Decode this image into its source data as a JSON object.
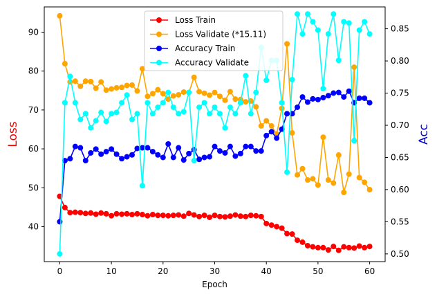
{
  "chart_data": {
    "type": "line",
    "xlabel": "Epoch",
    "ylabel_left": "Loss",
    "ylabel_right": "Acc",
    "ylabel_left_color": "#ff0000",
    "ylabel_right_color": "#0000cc",
    "xlim": [
      -3,
      63
    ],
    "ylim_left": [
      31.0,
      96.5
    ],
    "ylim_right": [
      0.488,
      0.884
    ],
    "xticks": [
      0,
      10,
      20,
      30,
      40,
      50,
      60
    ],
    "yticks_left": [
      40,
      50,
      60,
      70,
      80,
      90
    ],
    "yticks_right": [
      0.5,
      0.55,
      0.6,
      0.65,
      0.7,
      0.75,
      0.8,
      0.85
    ],
    "ytick_labels_right": [
      "0.50",
      "0.55",
      "0.60",
      "0.65",
      "0.70",
      "0.75",
      "0.80",
      "0.85"
    ],
    "grid": false,
    "legend_position": "upper-center",
    "x": [
      0,
      1,
      2,
      3,
      4,
      5,
      6,
      7,
      8,
      9,
      10,
      11,
      12,
      13,
      14,
      15,
      16,
      17,
      18,
      19,
      20,
      21,
      22,
      23,
      24,
      25,
      26,
      27,
      28,
      29,
      30,
      31,
      32,
      33,
      34,
      35,
      36,
      37,
      38,
      39,
      40,
      41,
      42,
      43,
      44,
      45,
      46,
      47,
      48,
      49,
      50,
      51,
      52,
      53,
      54,
      55,
      56,
      57,
      58,
      59,
      60
    ],
    "series": [
      {
        "name": "Loss Train",
        "color": "#ff0000",
        "axis": "left",
        "values": [
          47.8,
          44.9,
          43.6,
          43.7,
          43.6,
          43.4,
          43.5,
          43.2,
          43.5,
          43.3,
          42.8,
          43.3,
          43.2,
          43.3,
          43.1,
          43.3,
          43.1,
          42.8,
          43.1,
          42.9,
          42.9,
          42.8,
          42.9,
          43.0,
          42.7,
          43.4,
          43.0,
          42.6,
          42.9,
          42.4,
          42.9,
          42.6,
          42.5,
          42.7,
          43.0,
          42.7,
          42.6,
          42.9,
          42.8,
          42.6,
          40.8,
          40.4,
          40.0,
          39.6,
          38.2,
          38.1,
          36.5,
          36.0,
          35.1,
          34.8,
          34.6,
          34.6,
          34.0,
          34.9,
          33.9,
          34.8,
          34.6,
          34.5,
          35.0,
          34.6,
          34.9
        ]
      },
      {
        "name": "Loss Validate (*15.11)",
        "color": "#ffa500",
        "axis": "left",
        "values": [
          94.2,
          81.9,
          77.2,
          77.4,
          76.1,
          77.4,
          77.3,
          75.6,
          77.2,
          75.1,
          75.4,
          75.7,
          75.8,
          76.3,
          76.4,
          74.9,
          80.6,
          73.5,
          74.2,
          75.2,
          74.2,
          72.8,
          73.6,
          73.9,
          74.6,
          74.5,
          78.4,
          74.7,
          74.3,
          73.8,
          74.5,
          73.5,
          72.5,
          74.7,
          72.8,
          72.7,
          72.1,
          72.3,
          70.8,
          65.9,
          67.2,
          65.9,
          63.8,
          70.4,
          87.0,
          64.1,
          53.3,
          54.9,
          52.0,
          52.3,
          50.7,
          63.0,
          52.0,
          51.2,
          58.4,
          48.8,
          53.5,
          81.0,
          52.6,
          51.4,
          49.5
        ]
      },
      {
        "name": "Accuracy Train",
        "color": "#0000ff",
        "axis": "right",
        "values": [
          0.55,
          0.645,
          0.648,
          0.667,
          0.665,
          0.645,
          0.657,
          0.663,
          0.655,
          0.659,
          0.663,
          0.655,
          0.648,
          0.651,
          0.654,
          0.664,
          0.665,
          0.665,
          0.659,
          0.654,
          0.65,
          0.671,
          0.65,
          0.665,
          0.646,
          0.656,
          0.662,
          0.647,
          0.65,
          0.651,
          0.667,
          0.66,
          0.657,
          0.667,
          0.652,
          0.656,
          0.667,
          0.667,
          0.66,
          0.66,
          0.684,
          0.69,
          0.68,
          0.694,
          0.718,
          0.718,
          0.728,
          0.744,
          0.736,
          0.741,
          0.74,
          0.743,
          0.746,
          0.75,
          0.751,
          0.744,
          0.753,
          0.735,
          0.742,
          0.742,
          0.735
        ]
      },
      {
        "name": "Accuracy Validate",
        "color": "#00ffff",
        "axis": "right",
        "values": [
          0.5,
          0.735,
          0.776,
          0.735,
          0.709,
          0.718,
          0.696,
          0.707,
          0.72,
          0.706,
          0.718,
          0.72,
          0.735,
          0.747,
          0.709,
          0.718,
          0.606,
          0.735,
          0.718,
          0.728,
          0.735,
          0.751,
          0.728,
          0.718,
          0.721,
          0.751,
          0.645,
          0.728,
          0.735,
          0.718,
          0.728,
          0.718,
          0.696,
          0.728,
          0.718,
          0.735,
          0.777,
          0.718,
          0.751,
          0.821,
          0.77,
          0.801,
          0.801,
          0.735,
          0.627,
          0.771,
          0.873,
          0.842,
          0.873,
          0.861,
          0.848,
          0.757,
          0.842,
          0.873,
          0.801,
          0.861,
          0.859,
          0.676,
          0.848,
          0.861,
          0.842
        ]
      }
    ]
  }
}
